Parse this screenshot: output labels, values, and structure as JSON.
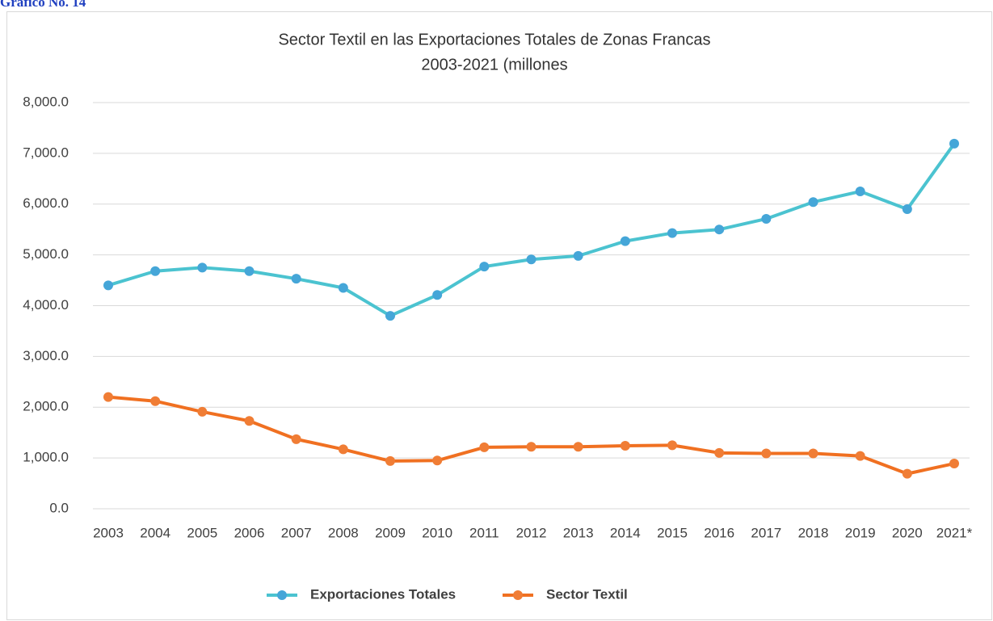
{
  "header": {
    "label": "Gráfico No. 14"
  },
  "chart_data": {
    "type": "line",
    "title": [
      "Sector Textil en las Exportaciones Totales de Zonas Francas",
      "2003-2021 (millones"
    ],
    "categories": [
      "2003",
      "2004",
      "2005",
      "2006",
      "2007",
      "2008",
      "2009",
      "2010",
      "2011",
      "2012",
      "2013",
      "2014",
      "2015",
      "2016",
      "2017",
      "2018",
      "2019",
      "2020",
      "2021*"
    ],
    "series": [
      {
        "name": "Exportaciones Totales",
        "color": "#4bc3d0",
        "marker_color": "#45a6d8",
        "values": [
          4400,
          4680,
          4750,
          4680,
          4530,
          4350,
          3800,
          4210,
          4770,
          4910,
          4980,
          5270,
          5430,
          5500,
          5710,
          6040,
          6250,
          5900,
          7190
        ]
      },
      {
        "name": "Sector Textil",
        "color": "#f07021",
        "marker_color": "#f07d35",
        "values": [
          2200,
          2120,
          1910,
          1730,
          1370,
          1170,
          940,
          950,
          1210,
          1220,
          1220,
          1240,
          1250,
          1100,
          1090,
          1090,
          1040,
          690,
          890
        ]
      }
    ],
    "ylim": [
      0,
      8000
    ],
    "yticks": [
      {
        "value": 0,
        "label": "0.0"
      },
      {
        "value": 1000,
        "label": "1,000.0"
      },
      {
        "value": 2000,
        "label": "2,000.0"
      },
      {
        "value": 3000,
        "label": "3,000.0"
      },
      {
        "value": 4000,
        "label": "4,000.0"
      },
      {
        "value": 5000,
        "label": "5,000.0"
      },
      {
        "value": 6000,
        "label": "6,000.0"
      },
      {
        "value": 7000,
        "label": "7,000.0"
      },
      {
        "value": 8000,
        "label": "8,000.0"
      }
    ],
    "grid": true,
    "legend": "bottom"
  }
}
